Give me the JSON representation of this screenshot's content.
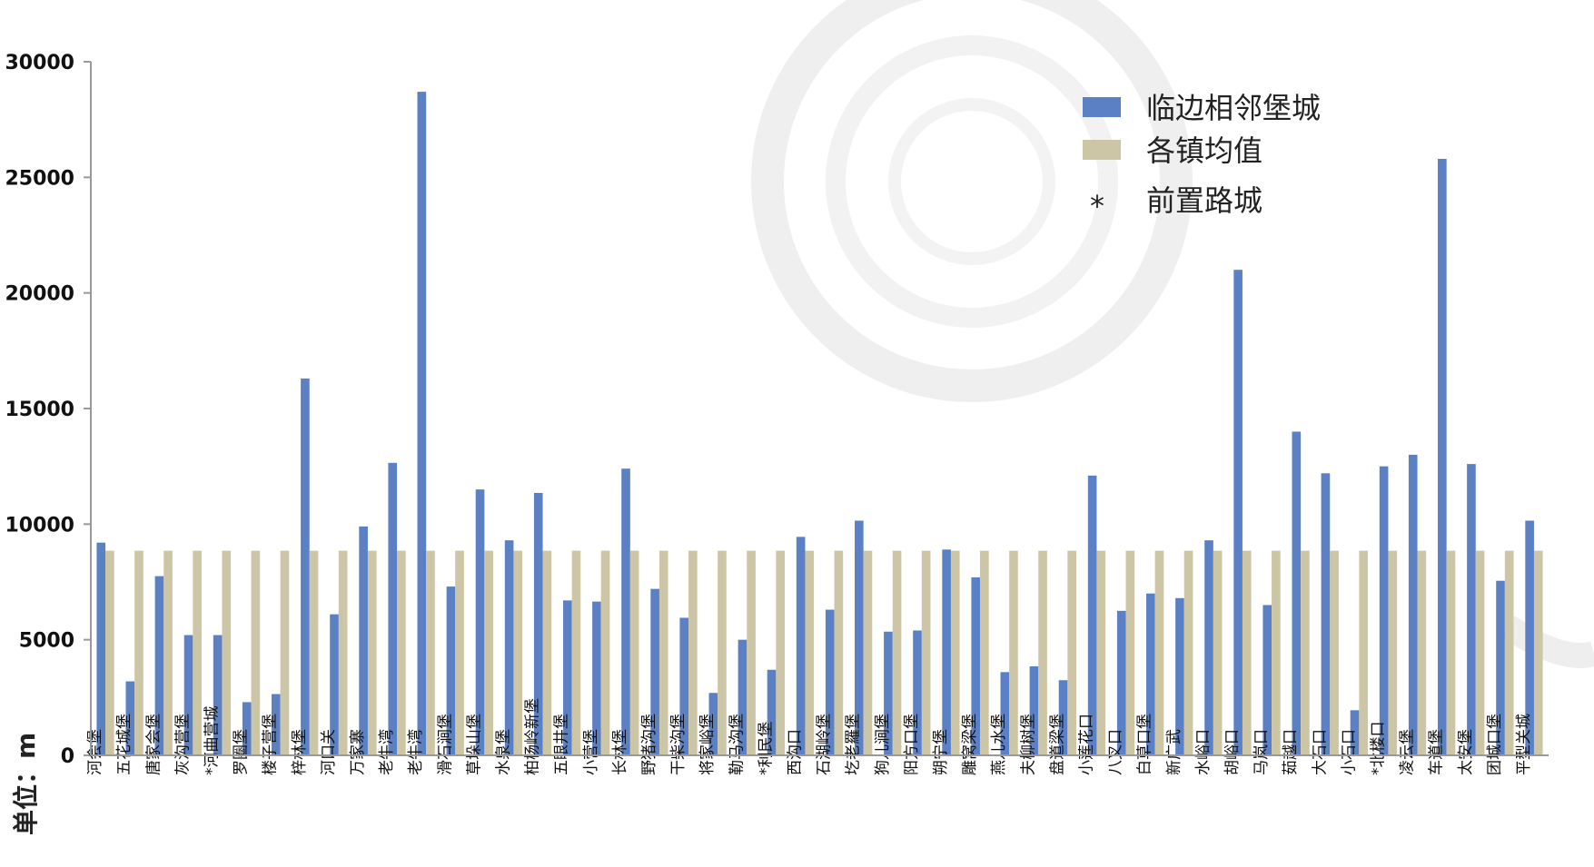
{
  "chart_data": {
    "type": "bar",
    "ylim": [
      0,
      30000
    ],
    "yticks": [
      "0",
      "5000",
      "10000",
      "15000",
      "20000",
      "25000",
      "30000"
    ],
    "ylabel": "单位：m",
    "legend_position": "top-right",
    "grid": false,
    "colors": {
      "series_0": "#5b80c4",
      "series_1": "#ccc6a6",
      "axis": "#999999"
    },
    "categories": [
      "河会堡",
      "五花城堡",
      "唐家会堡",
      "灰沟营堡",
      "*河曲营城",
      "罗圈堡",
      "楼子营堡",
      "梓林堡",
      "河口关",
      "万家寨",
      "老牛湾",
      "老牛湾",
      "滑石涧堡",
      "草垛山堡",
      "水泉堡",
      "柏杨岭新堡",
      "五眼井堡",
      "小营堡",
      "长林堡",
      "野猪沟堡",
      "干柴沟堡",
      "将家峪堡",
      "勒马沟堡",
      "*利民堡",
      "西沟口",
      "石湖岭堡",
      "圪老羅堡",
      "狗儿涧堡",
      "阳方口堡",
      "朔宁堡",
      "雕窝梁堡",
      "燕儿水堡",
      "夫柳树堡",
      "盘道梁堡",
      "小莲花口",
      "八叉口",
      "白草口堡",
      "新广武",
      "水峪口",
      "胡峪口",
      "马岚口",
      "茹越口",
      "大石口",
      "小石口",
      "*北楼口",
      "凌云堡",
      "车道堡",
      "太安堡",
      "团城口堡",
      "平型关城"
    ],
    "series": [
      {
        "name": "临边相邻堡城",
        "values": [
          9200,
          3200,
          7750,
          5200,
          5200,
          2300,
          2650,
          16300,
          6100,
          9900,
          12650,
          28700,
          7300,
          11500,
          9300,
          11350,
          6700,
          6650,
          12400,
          7200,
          5950,
          2700,
          5000,
          3700,
          9450,
          6300,
          10150,
          5350,
          5400,
          8900,
          7700,
          3600,
          3850,
          3250,
          12100,
          6250,
          7000,
          6800,
          9300,
          21000,
          6500,
          14000,
          12200,
          1950,
          12500,
          13000,
          25800,
          12600,
          7550,
          10150
        ]
      },
      {
        "name": "各镇均值",
        "values": [
          8850,
          8850,
          8850,
          8850,
          8850,
          8850,
          8850,
          8850,
          8850,
          8850,
          8850,
          8850,
          8850,
          8850,
          8850,
          8850,
          8850,
          8850,
          8850,
          8850,
          8850,
          8850,
          8850,
          8850,
          8850,
          8850,
          8850,
          8850,
          8850,
          8850,
          8850,
          8850,
          8850,
          8850,
          8850,
          8850,
          8850,
          8850,
          8850,
          8850,
          8850,
          8850,
          8850,
          8850,
          8850,
          8850,
          8850,
          8850,
          8850,
          8850
        ]
      }
    ],
    "legend": [
      {
        "label": "临边相邻堡城",
        "kind": "swatch",
        "color": "#5b80c4"
      },
      {
        "label": "各镇均值",
        "kind": "swatch",
        "color": "#ccc6a6"
      },
      {
        "label": "前置路城",
        "kind": "marker",
        "marker": "*"
      }
    ]
  }
}
